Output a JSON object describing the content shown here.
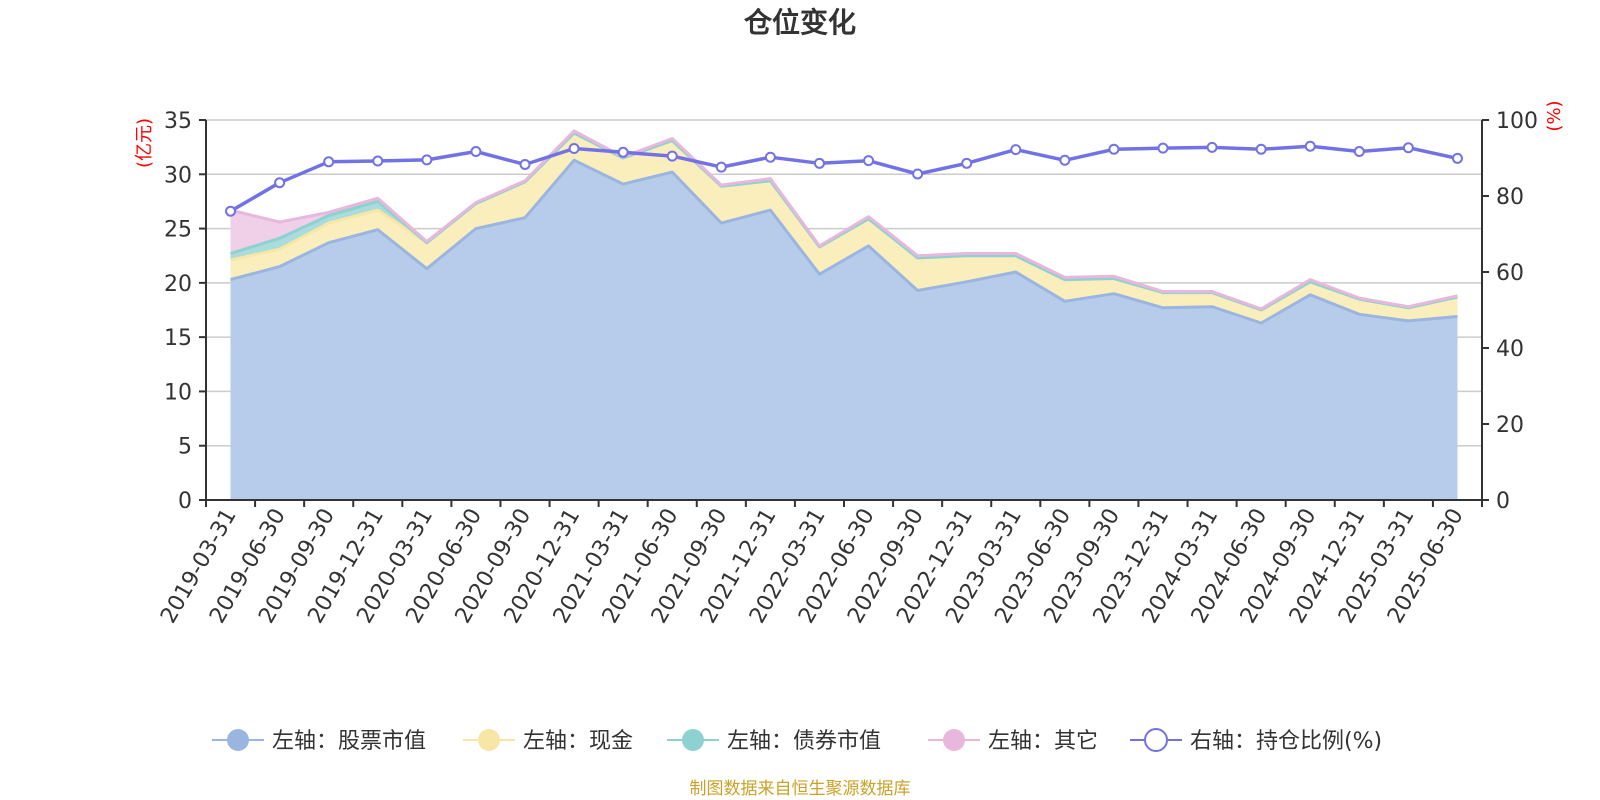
{
  "chart_data": {
    "type": "area",
    "title": "仓位变化",
    "left_axis": {
      "unit": "(亿元)",
      "range": [
        0,
        35
      ],
      "ticks": [
        0,
        5,
        10,
        15,
        20,
        25,
        30,
        35
      ]
    },
    "right_axis": {
      "unit": "(%)",
      "range": [
        0,
        100
      ],
      "ticks": [
        0,
        20,
        40,
        60,
        80,
        100
      ]
    },
    "categories": [
      "2019-03-31",
      "2019-06-30",
      "2019-09-30",
      "2019-12-31",
      "2020-03-31",
      "2020-06-30",
      "2020-09-30",
      "2020-12-31",
      "2021-03-31",
      "2021-06-30",
      "2021-09-30",
      "2021-12-31",
      "2022-03-31",
      "2022-06-30",
      "2022-09-30",
      "2022-12-31",
      "2023-03-31",
      "2023-06-30",
      "2023-09-30",
      "2023-12-31",
      "2024-03-31",
      "2024-06-30",
      "2024-09-30",
      "2024-12-31",
      "2025-03-31",
      "2025-06-30"
    ],
    "series": [
      {
        "name": "左轴：股票市值",
        "axis": "left",
        "stack": true,
        "color": "#9ab6e0",
        "fill": "#b7cceb",
        "values": [
          20.3,
          21.5,
          23.7,
          24.9,
          21.3,
          25.0,
          26.0,
          31.3,
          29.1,
          30.2,
          25.5,
          26.7,
          20.8,
          23.4,
          19.3,
          20.1,
          21.0,
          18.3,
          19.0,
          17.7,
          17.8,
          16.3,
          18.9,
          17.1,
          16.5,
          16.9
        ]
      },
      {
        "name": "左轴：现金",
        "axis": "left",
        "stack": true,
        "color": "#f7e6a6",
        "fill": "#faeebd",
        "values": [
          1.8,
          1.6,
          1.8,
          1.8,
          2.4,
          2.3,
          3.3,
          2.5,
          2.4,
          2.9,
          3.4,
          2.7,
          2.5,
          2.5,
          3.0,
          2.4,
          1.5,
          2.0,
          1.4,
          1.4,
          1.3,
          1.2,
          1.2,
          1.4,
          1.2,
          1.8
        ]
      },
      {
        "name": "左轴：债券市值",
        "axis": "left",
        "stack": true,
        "color": "#8dd1d1",
        "fill": "#a9dcdc",
        "values": [
          0.6,
          1.0,
          0.7,
          0.8,
          0,
          0,
          0,
          0,
          0,
          0,
          0,
          0,
          0,
          0,
          0,
          0,
          0,
          0,
          0,
          0,
          0,
          0,
          0,
          0,
          0,
          0
        ]
      },
      {
        "name": "左轴：其它",
        "axis": "left",
        "stack": true,
        "color": "#e7b8dc",
        "fill": "#f0cfe8",
        "values": [
          4.0,
          1.5,
          0.3,
          0.3,
          0.1,
          0.1,
          0.1,
          0.2,
          0.1,
          0.2,
          0.1,
          0.2,
          0.1,
          0.2,
          0.2,
          0.2,
          0.2,
          0.2,
          0.2,
          0.1,
          0.1,
          0.1,
          0.2,
          0.1,
          0.1,
          0.1
        ]
      },
      {
        "name": "右轴：持仓比例(%)",
        "axis": "right",
        "stack": false,
        "color": "#7272e6",
        "values": [
          76.0,
          83.5,
          89.0,
          89.2,
          89.5,
          91.7,
          88.3,
          92.5,
          91.5,
          90.5,
          87.6,
          90.2,
          88.6,
          89.3,
          85.8,
          88.6,
          92.2,
          89.4,
          92.3,
          92.6,
          92.8,
          92.3,
          93.1,
          91.7,
          92.7,
          89.9
        ]
      }
    ],
    "legend_position": "bottom-center",
    "grid": true
  },
  "footer": {
    "source": "制图数据来自恒生聚源数据库"
  }
}
